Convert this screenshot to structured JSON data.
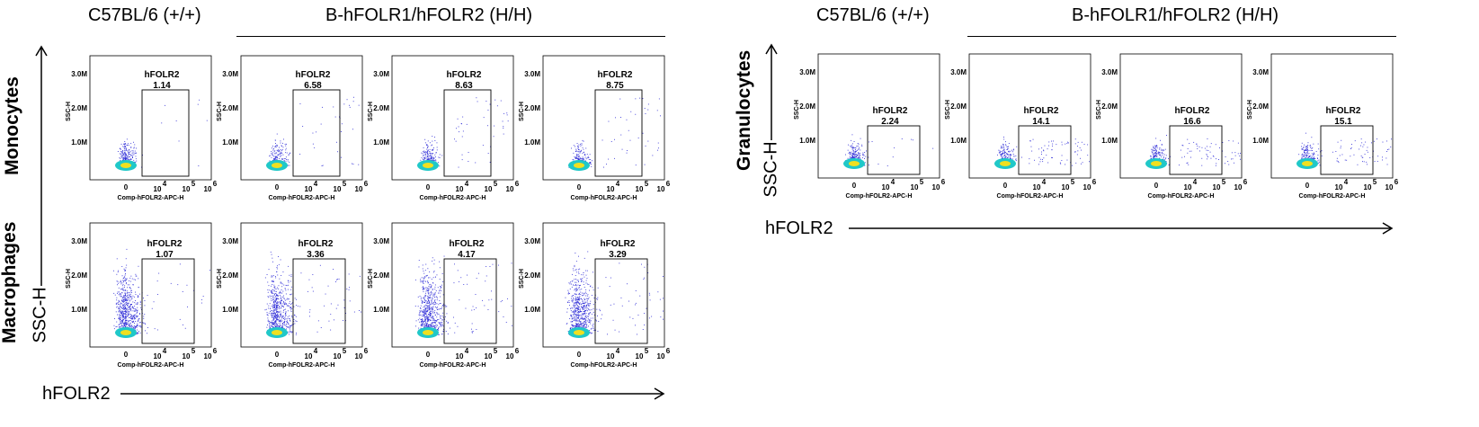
{
  "left_panel": {
    "header_control": "C57BL/6 (+/+)",
    "header_hh": "B-hFOLR1/hFOLR2 (H/H)",
    "row_labels": [
      "Monocytes",
      "Macrophages"
    ],
    "y_axis_label": "SSC-H",
    "x_axis_label": "hFOLR2"
  },
  "right_panel": {
    "header_control": "C57BL/6 (+/+)",
    "header_hh": "B-hFOLR1/hFOLR2 (H/H)",
    "row_labels": [
      "Granulocytes"
    ],
    "y_axis_label": "SSC-H",
    "x_axis_label": "hFOLR2"
  },
  "plot_axes": {
    "xlabel": "Comp-hFOLR2-APC-H",
    "ylabel": "SSC-H",
    "y_ticks": [
      "3.0M",
      "2.0M",
      "1.0M"
    ],
    "x_ticks": [
      "0",
      "10",
      "4",
      "10",
      "5",
      "10",
      "6"
    ]
  },
  "chart_data": [
    {
      "type": "scatter",
      "panel": "Monocytes",
      "sample": "C57BL/6 (+/+)",
      "gate": "hFOLR2",
      "percent": "1.14"
    },
    {
      "type": "scatter",
      "panel": "Monocytes",
      "sample": "B-hFOLR1/hFOLR2 (H/H)",
      "gate": "hFOLR2",
      "percent": "6.58"
    },
    {
      "type": "scatter",
      "panel": "Monocytes",
      "sample": "B-hFOLR1/hFOLR2 (H/H)",
      "gate": "hFOLR2",
      "percent": "8.63"
    },
    {
      "type": "scatter",
      "panel": "Monocytes",
      "sample": "B-hFOLR1/hFOLR2 (H/H)",
      "gate": "hFOLR2",
      "percent": "8.75"
    },
    {
      "type": "scatter",
      "panel": "Macrophages",
      "sample": "C57BL/6 (+/+)",
      "gate": "hFOLR2",
      "percent": "1.07"
    },
    {
      "type": "scatter",
      "panel": "Macrophages",
      "sample": "B-hFOLR1/hFOLR2 (H/H)",
      "gate": "hFOLR2",
      "percent": "3.36"
    },
    {
      "type": "scatter",
      "panel": "Macrophages",
      "sample": "B-hFOLR1/hFOLR2 (H/H)",
      "gate": "hFOLR2",
      "percent": "4.17"
    },
    {
      "type": "scatter",
      "panel": "Macrophages",
      "sample": "B-hFOLR1/hFOLR2 (H/H)",
      "gate": "hFOLR2",
      "percent": "3.29"
    },
    {
      "type": "scatter",
      "panel": "Granulocytes",
      "sample": "C57BL/6 (+/+)",
      "gate": "hFOLR2",
      "percent": "2.24"
    },
    {
      "type": "scatter",
      "panel": "Granulocytes",
      "sample": "B-hFOLR1/hFOLR2 (H/H)",
      "gate": "hFOLR2",
      "percent": "14.1"
    },
    {
      "type": "scatter",
      "panel": "Granulocytes",
      "sample": "B-hFOLR1/hFOLR2 (H/H)",
      "gate": "hFOLR2",
      "percent": "16.6"
    },
    {
      "type": "scatter",
      "panel": "Granulocytes",
      "sample": "B-hFOLR1/hFOLR2 (H/H)",
      "gate": "hFOLR2",
      "percent": "15.1"
    }
  ],
  "colors": {
    "dots": "#2d2bd6",
    "density_core": "#f0e020",
    "density_mid": "#20c8c8",
    "line": "#000000"
  }
}
